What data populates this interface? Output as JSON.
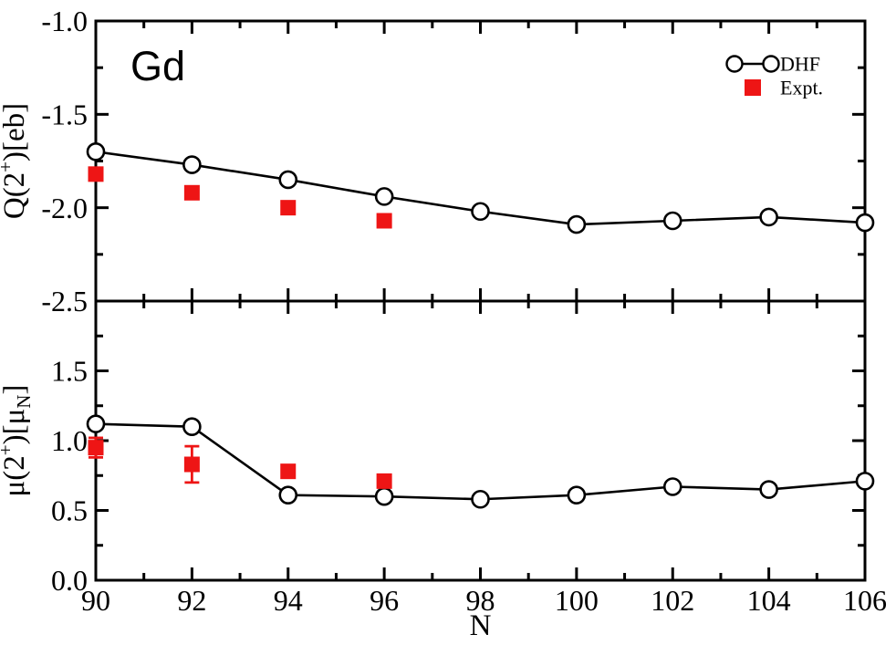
{
  "figure": {
    "annotation": "Gd",
    "xlabel": "N",
    "xlim": [
      90,
      106
    ],
    "x_ticks": [
      90,
      92,
      94,
      96,
      98,
      100,
      102,
      104,
      106
    ],
    "x_tick_labels": [
      "90",
      "92",
      "94",
      "96",
      "98",
      "100",
      "102",
      "104",
      "106"
    ],
    "x_minor_ticks": [
      91,
      93,
      95,
      97,
      99,
      101,
      103,
      105
    ],
    "colors": {
      "line": "#000000",
      "expt": "#ee1515",
      "background": "#ffffff"
    },
    "legend": {
      "position": "top-right",
      "items": [
        {
          "label": "DHF",
          "marker": "open-circles-with-line",
          "color": "#000000"
        },
        {
          "label": "Expt.",
          "marker": "filled-square",
          "color": "#ee1515"
        }
      ]
    }
  },
  "chart_data": [
    {
      "type": "line",
      "panel": "top",
      "ylabel": "Q(2+)[eb]",
      "ylabel_parts": [
        {
          "t": "Q(2"
        },
        {
          "t": "+",
          "sup": true
        },
        {
          "t": ")[eb]"
        }
      ],
      "ylim": [
        -2.5,
        -1.0
      ],
      "yticks": [
        -1.0,
        -1.5,
        -2.0,
        -2.5
      ],
      "ytick_labels": [
        "-1.0",
        "-1.5",
        "-2.0",
        "-2.5"
      ],
      "y_minor_ticks": [
        -1.25,
        -1.75,
        -2.25
      ],
      "grid": false,
      "series": [
        {
          "name": "DHF",
          "marker": "circle",
          "line": true,
          "color": "#000000",
          "x": [
            90,
            92,
            94,
            96,
            98,
            100,
            102,
            104,
            106
          ],
          "y": [
            -1.7,
            -1.77,
            -1.85,
            -1.94,
            -2.02,
            -2.09,
            -2.07,
            -2.05,
            -2.08
          ]
        },
        {
          "name": "Expt.",
          "marker": "square",
          "line": false,
          "color": "#ee1515",
          "x": [
            90,
            92,
            94,
            96
          ],
          "y": [
            -1.82,
            -1.92,
            -2.0,
            -2.07
          ],
          "yerr": [
            0,
            0,
            0,
            0
          ]
        }
      ]
    },
    {
      "type": "line",
      "panel": "bottom",
      "ylabel": "μ(2+)[μN]",
      "ylabel_parts": [
        {
          "t": "μ(2"
        },
        {
          "t": "+",
          "sup": true
        },
        {
          "t": ")[μ"
        },
        {
          "t": "N",
          "sub": true
        },
        {
          "t": "]"
        }
      ],
      "ylim": [
        0.0,
        2.0
      ],
      "yticks": [
        0.0,
        0.5,
        1.0,
        1.5
      ],
      "ytick_labels": [
        "0.0",
        "0.5",
        "1.0",
        "1.5"
      ],
      "y_minor_ticks": [
        0.25,
        0.75,
        1.25,
        1.75
      ],
      "grid": false,
      "series": [
        {
          "name": "DHF",
          "marker": "circle",
          "line": true,
          "color": "#000000",
          "x": [
            90,
            92,
            94,
            96,
            98,
            100,
            102,
            104,
            106
          ],
          "y": [
            1.12,
            1.1,
            0.61,
            0.6,
            0.58,
            0.61,
            0.67,
            0.65,
            0.71
          ]
        },
        {
          "name": "Expt.",
          "marker": "square",
          "line": false,
          "color": "#ee1515",
          "x": [
            90,
            92,
            94,
            96
          ],
          "y": [
            0.95,
            0.83,
            0.78,
            0.71
          ],
          "yerr": [
            0.07,
            0.13,
            0.04,
            0
          ]
        }
      ]
    }
  ]
}
